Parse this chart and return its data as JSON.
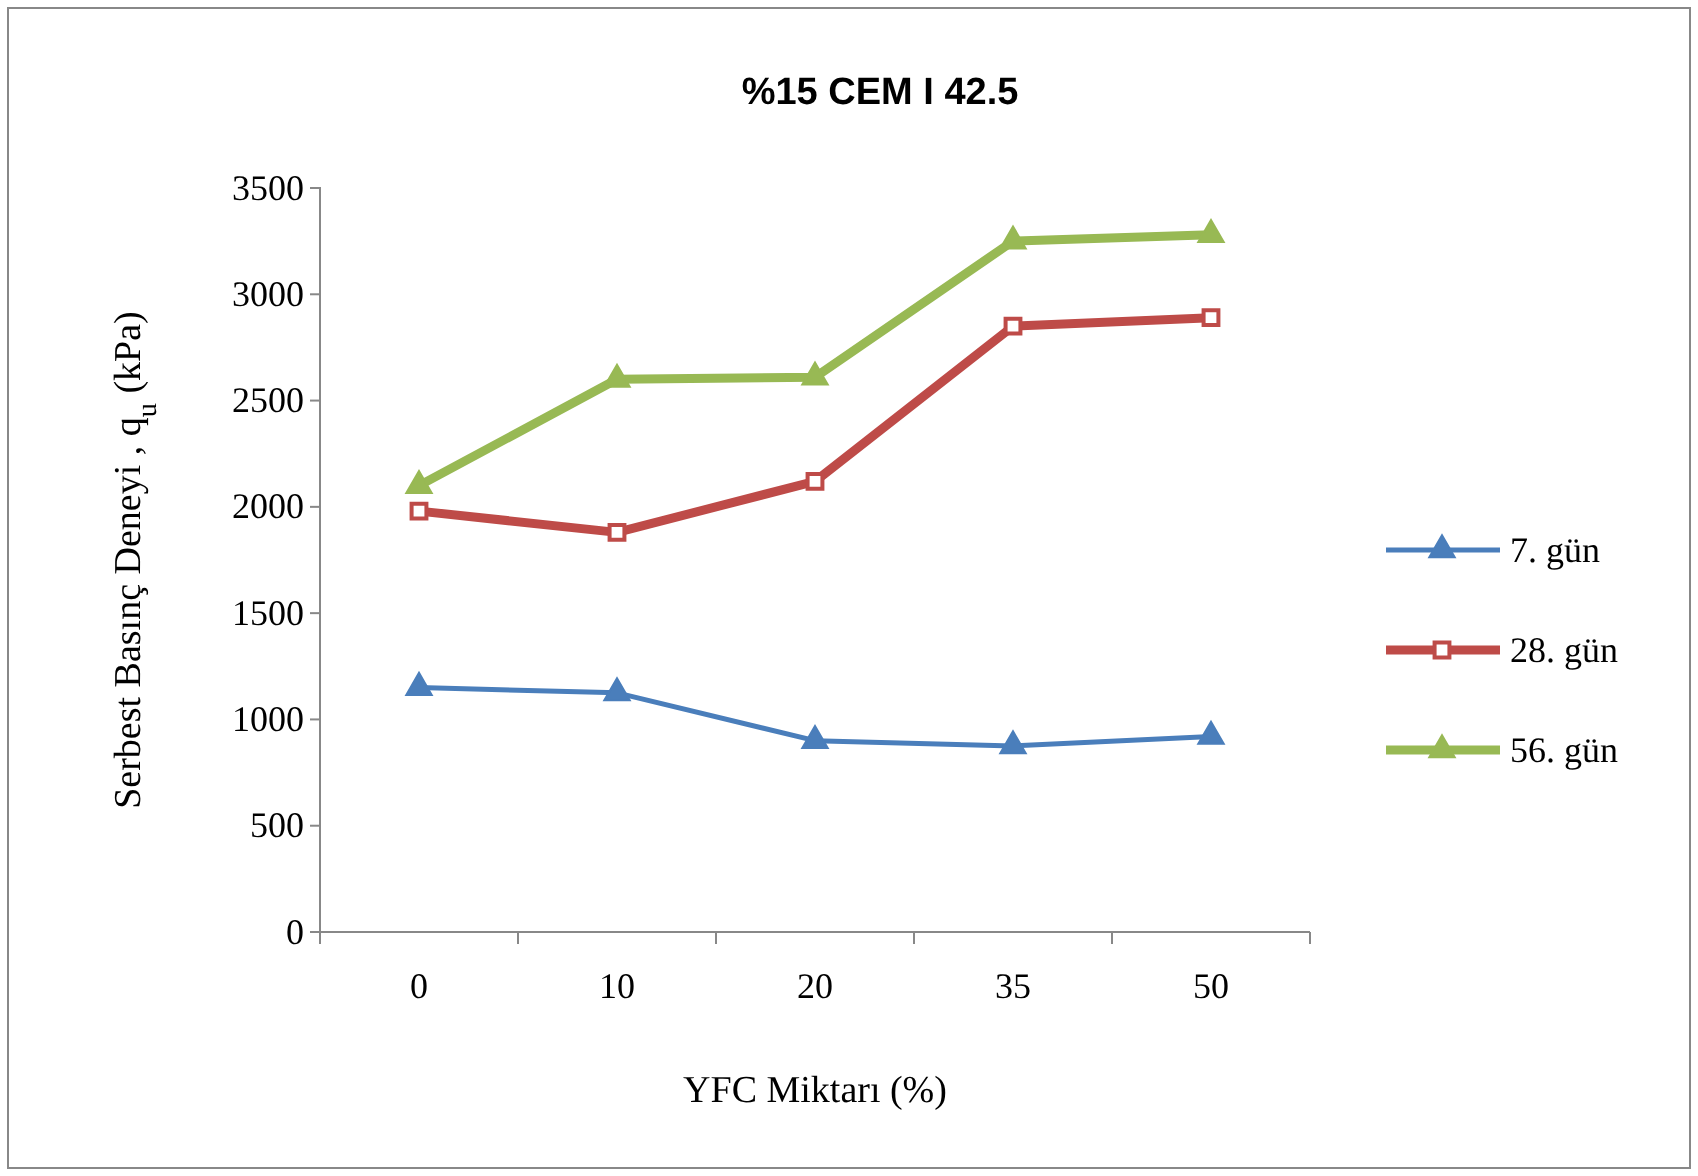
{
  "chart_data": {
    "type": "line",
    "title": "%15 CEM I 42.5",
    "xlabel": "YFC Miktarı (%)",
    "ylabel": "Serbest  Basınç Deneyi , q$_{u}$ (kPa)",
    "categories": [
      "0",
      "10",
      "20",
      "35",
      "50"
    ],
    "ylim": [
      0,
      3500
    ],
    "yticks": [
      0,
      500,
      1000,
      1500,
      2000,
      2500,
      3000,
      3500
    ],
    "grid": false,
    "legend": "right",
    "series": [
      {
        "name": "7. gün",
        "color": "#4a7ebb",
        "values": [
          1150,
          1125,
          900,
          875,
          920
        ],
        "marker": "triangle"
      },
      {
        "name": "28. gün",
        "color": "#be4b48",
        "values": [
          1980,
          1880,
          2120,
          2850,
          2890
        ],
        "marker": "square"
      },
      {
        "name": "56. gün",
        "color": "#98b954",
        "values": [
          2100,
          2600,
          2610,
          3250,
          3280
        ],
        "marker": "triangle"
      }
    ]
  }
}
